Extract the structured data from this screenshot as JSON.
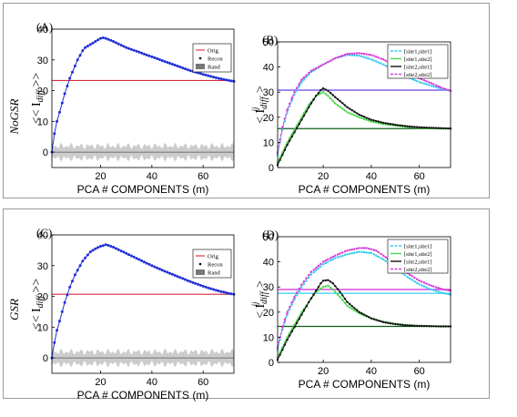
{
  "figure": {
    "row_labels": [
      "NoGSR",
      "GSR"
    ],
    "xlabel": "PCA # COMPONENTS (m)",
    "ylabel_left": "<< I_diff >>",
    "ylabel_right": "< I^ij_diff >",
    "colors": {
      "blue": "#1f2fd6",
      "red": "#d92b3a",
      "band": "#c7c7c7",
      "site11": "#33ccf0",
      "site12": "#4bd84b",
      "site21": "#111111",
      "site22": "#d93ad9",
      "purple": "#6a42e6",
      "darkgreen": "#0b5e14"
    }
  },
  "chart_data": [
    {
      "panel": "(A)",
      "type": "line",
      "xlim": [
        1,
        72
      ],
      "ylim": [
        -5,
        40
      ],
      "xticks": [
        20,
        40,
        60
      ],
      "yticks": [
        0,
        10,
        20,
        30,
        40
      ],
      "legend": [
        "Orig",
        "Recon",
        "Rand"
      ],
      "legend_position": "top-right",
      "curve": {
        "name": "Recon",
        "points": [
          [
            1,
            0
          ],
          [
            2,
            6
          ],
          [
            3,
            10
          ],
          [
            4,
            13
          ],
          [
            5,
            16
          ],
          [
            6,
            19
          ],
          [
            7,
            21.5
          ],
          [
            8,
            24
          ],
          [
            9,
            26
          ],
          [
            10,
            28
          ],
          [
            11,
            30
          ],
          [
            12,
            31.5
          ],
          [
            13,
            33
          ],
          [
            14,
            34
          ],
          [
            15,
            34.5
          ],
          [
            16,
            35
          ],
          [
            17,
            35.5
          ],
          [
            18,
            36
          ],
          [
            19,
            36.5
          ],
          [
            20,
            37
          ],
          [
            21,
            37.2
          ],
          [
            22,
            37
          ],
          [
            25,
            36
          ],
          [
            30,
            34
          ],
          [
            35,
            32.5
          ],
          [
            40,
            31
          ],
          [
            45,
            29.5
          ],
          [
            50,
            28
          ],
          [
            55,
            26.5
          ],
          [
            60,
            25.3
          ],
          [
            65,
            24.2
          ],
          [
            70,
            23.3
          ],
          [
            72,
            23
          ]
        ]
      },
      "orig_value": 23.3,
      "rand": {
        "mean": 0,
        "band": 2
      }
    },
    {
      "panel": "(B)",
      "type": "line",
      "xlim": [
        1,
        73
      ],
      "ylim": [
        0,
        50
      ],
      "xticks": [
        20,
        40,
        60
      ],
      "yticks": [
        0,
        10,
        20,
        30,
        40,
        50
      ],
      "legend": [
        "[site1,site1]",
        "[site1,site2]",
        "[site2,site1]",
        "[site2,site2]"
      ],
      "legend_position": "top-right",
      "series": [
        {
          "name": "[site1,site1]",
          "color": "site11",
          "points": [
            [
              1,
              5
            ],
            [
              3,
              15
            ],
            [
              5,
              22
            ],
            [
              8,
              29
            ],
            [
              11,
              34
            ],
            [
              15,
              38
            ],
            [
              20,
              41
            ],
            [
              25,
              43.5
            ],
            [
              30,
              44.8
            ],
            [
              35,
              44.5
            ],
            [
              40,
              43
            ],
            [
              45,
              41
            ],
            [
              50,
              38.5
            ],
            [
              55,
              36
            ],
            [
              60,
              34
            ],
            [
              65,
              32.5
            ],
            [
              70,
              31.2
            ],
            [
              73,
              30.5
            ]
          ]
        },
        {
          "name": "[site1,site2]",
          "color": "site12",
          "points": [
            [
              1,
              2
            ],
            [
              3,
              6
            ],
            [
              5,
              10
            ],
            [
              8,
              15
            ],
            [
              11,
              20
            ],
            [
              14,
              25
            ],
            [
              17,
              28.5
            ],
            [
              20,
              30
            ],
            [
              22,
              28.5
            ],
            [
              25,
              25.5
            ],
            [
              30,
              22
            ],
            [
              35,
              20
            ],
            [
              40,
              18.3
            ],
            [
              45,
              17.3
            ],
            [
              50,
              16.7
            ],
            [
              55,
              16.2
            ],
            [
              60,
              15.8
            ],
            [
              65,
              15.6
            ],
            [
              70,
              15.5
            ],
            [
              73,
              15.5
            ]
          ]
        },
        {
          "name": "[site2,site1]",
          "color": "site21",
          "points": [
            [
              1,
              1
            ],
            [
              3,
              5
            ],
            [
              5,
              9
            ],
            [
              8,
              14
            ],
            [
              11,
              19
            ],
            [
              14,
              24
            ],
            [
              17,
              28.5
            ],
            [
              19,
              30.8
            ],
            [
              20,
              31.5
            ],
            [
              22,
              30.5
            ],
            [
              25,
              28
            ],
            [
              30,
              24
            ],
            [
              35,
              21
            ],
            [
              40,
              19
            ],
            [
              45,
              17.8
            ],
            [
              50,
              17
            ],
            [
              55,
              16.4
            ],
            [
              60,
              16
            ],
            [
              65,
              15.8
            ],
            [
              70,
              15.6
            ],
            [
              73,
              15.5
            ]
          ]
        },
        {
          "name": "[site2,site2]",
          "color": "site22",
          "points": [
            [
              1,
              6
            ],
            [
              3,
              16
            ],
            [
              5,
              23
            ],
            [
              8,
              30
            ],
            [
              11,
              35
            ],
            [
              15,
              38.5
            ],
            [
              20,
              41
            ],
            [
              25,
              43.5
            ],
            [
              30,
              45.2
            ],
            [
              35,
              45.5
            ],
            [
              40,
              44.8
            ],
            [
              45,
              43
            ],
            [
              50,
              40.5
            ],
            [
              55,
              38
            ],
            [
              60,
              35.5
            ],
            [
              65,
              33.5
            ],
            [
              70,
              31.5
            ],
            [
              73,
              30.5
            ]
          ]
        }
      ],
      "hlines": [
        {
          "value": 30.8,
          "color": "purple"
        },
        {
          "value": 15.5,
          "color": "darkgreen"
        }
      ]
    },
    {
      "panel": "(C)",
      "type": "line",
      "xlim": [
        1,
        72
      ],
      "ylim": [
        -5,
        40
      ],
      "xticks": [
        20,
        40,
        60
      ],
      "yticks": [
        0,
        10,
        20,
        30,
        40
      ],
      "legend": [
        "Orig",
        "Recon",
        "Rand"
      ],
      "legend_position": "top-right",
      "curve": {
        "name": "Recon",
        "points": [
          [
            1,
            0
          ],
          [
            2,
            5
          ],
          [
            3,
            9
          ],
          [
            4,
            12
          ],
          [
            5,
            15
          ],
          [
            6,
            18
          ],
          [
            7,
            20.5
          ],
          [
            8,
            23
          ],
          [
            9,
            25
          ],
          [
            10,
            27
          ],
          [
            11,
            28.5
          ],
          [
            12,
            30
          ],
          [
            13,
            31.5
          ],
          [
            14,
            32.5
          ],
          [
            15,
            33.5
          ],
          [
            16,
            34.5
          ],
          [
            18,
            35.5
          ],
          [
            20,
            36.3
          ],
          [
            22,
            36.8
          ],
          [
            23,
            36.6
          ],
          [
            25,
            36
          ],
          [
            30,
            34
          ],
          [
            35,
            32
          ],
          [
            40,
            30
          ],
          [
            45,
            28.2
          ],
          [
            50,
            26.5
          ],
          [
            55,
            24.8
          ],
          [
            60,
            23.3
          ],
          [
            65,
            22
          ],
          [
            70,
            21
          ],
          [
            72,
            20.7
          ]
        ]
      },
      "orig_value": 20.7,
      "rand": {
        "mean": 0,
        "band": 2
      }
    },
    {
      "panel": "(D)",
      "type": "line",
      "xlim": [
        1,
        73
      ],
      "ylim": [
        0,
        50
      ],
      "xticks": [
        20,
        40,
        60
      ],
      "yticks": [
        0,
        10,
        20,
        30,
        40,
        50
      ],
      "legend": [
        "[site1,site1]",
        "[site1,site2]",
        "[site2,site1]",
        "[site2,site2]"
      ],
      "legend_position": "top-right",
      "series": [
        {
          "name": "[site1,site1]",
          "color": "site11",
          "points": [
            [
              1,
              5
            ],
            [
              3,
              13
            ],
            [
              5,
              19
            ],
            [
              8,
              25
            ],
            [
              11,
              30
            ],
            [
              15,
              35
            ],
            [
              20,
              39
            ],
            [
              25,
              41.5
            ],
            [
              30,
              43
            ],
            [
              35,
              44
            ],
            [
              40,
              43.5
            ],
            [
              45,
              41
            ],
            [
              50,
              37.5
            ],
            [
              55,
              34
            ],
            [
              60,
              31
            ],
            [
              65,
              29
            ],
            [
              70,
              27.5
            ],
            [
              73,
              27
            ]
          ]
        },
        {
          "name": "[site1,site2]",
          "color": "site12",
          "points": [
            [
              1,
              2
            ],
            [
              3,
              6
            ],
            [
              5,
              10
            ],
            [
              8,
              15
            ],
            [
              11,
              20
            ],
            [
              14,
              24
            ],
            [
              17,
              28
            ],
            [
              20,
              30
            ],
            [
              22,
              30.5
            ],
            [
              24,
              29
            ],
            [
              27,
              26
            ],
            [
              30,
              22.5
            ],
            [
              35,
              19.5
            ],
            [
              40,
              17.5
            ],
            [
              45,
              16.2
            ],
            [
              50,
              15.3
            ],
            [
              55,
              14.8
            ],
            [
              60,
              14.5
            ],
            [
              65,
              14.4
            ],
            [
              70,
              14.3
            ],
            [
              73,
              14.3
            ]
          ]
        },
        {
          "name": "[site2,site1]",
          "color": "site21",
          "points": [
            [
              1,
              1
            ],
            [
              3,
              5
            ],
            [
              5,
              9
            ],
            [
              8,
              14
            ],
            [
              11,
              19
            ],
            [
              14,
              24
            ],
            [
              17,
              28.5
            ],
            [
              19,
              31.5
            ],
            [
              20,
              32.5
            ],
            [
              22,
              32.7
            ],
            [
              24,
              31.5
            ],
            [
              27,
              28
            ],
            [
              30,
              24
            ],
            [
              35,
              20
            ],
            [
              40,
              17.5
            ],
            [
              45,
              16
            ],
            [
              50,
              15.2
            ],
            [
              55,
              14.7
            ],
            [
              60,
              14.5
            ],
            [
              65,
              14.4
            ],
            [
              70,
              14.3
            ],
            [
              73,
              14.3
            ]
          ]
        },
        {
          "name": "[site2,site2]",
          "color": "site22",
          "points": [
            [
              1,
              6
            ],
            [
              3,
              14
            ],
            [
              5,
              20
            ],
            [
              8,
              26
            ],
            [
              11,
              31
            ],
            [
              15,
              36
            ],
            [
              20,
              40
            ],
            [
              25,
              42.5
            ],
            [
              30,
              44.5
            ],
            [
              35,
              45.5
            ],
            [
              38,
              45.5
            ],
            [
              42,
              44.5
            ],
            [
              45,
              42.5
            ],
            [
              50,
              39
            ],
            [
              55,
              35.5
            ],
            [
              60,
              32.5
            ],
            [
              65,
              30.5
            ],
            [
              70,
              29
            ],
            [
              73,
              28.5
            ]
          ]
        }
      ],
      "hlines": [
        {
          "value": 29,
          "color": "site22"
        },
        {
          "value": 27.5,
          "color": "site11"
        },
        {
          "value": 14.3,
          "color": "darkgreen"
        }
      ]
    }
  ]
}
